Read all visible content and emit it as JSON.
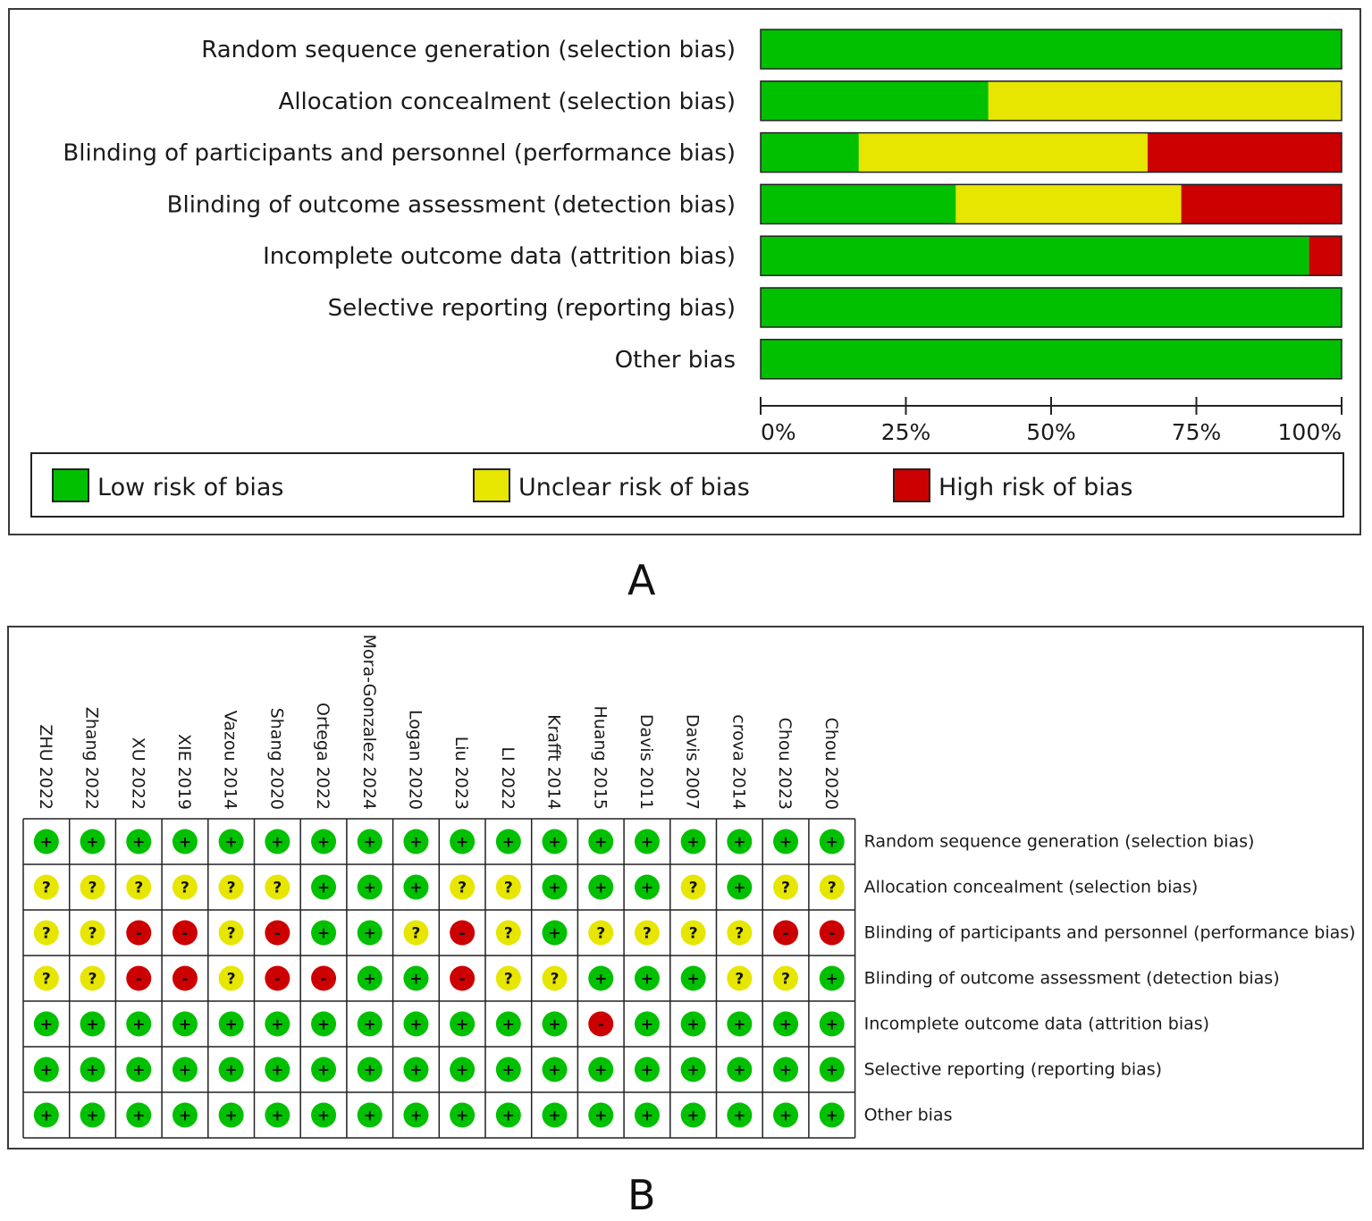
{
  "domains": [
    "Random sequence generation (selection bias)",
    "Allocation concealment (selection bias)",
    "Blinding of participants and personnel (performance bias)",
    "Blinding of outcome assessment (detection bias)",
    "Incomplete outcome data (attrition bias)",
    "Selective reporting (reporting bias)",
    "Other bias"
  ],
  "colors": {
    "low": "#00c000",
    "unclear": "#e6e600",
    "high": "#cc0000"
  },
  "panel_labels": {
    "a": "A",
    "b": "B"
  },
  "chart_data": [
    {
      "type": "bar",
      "orientation": "horizontal-stacked",
      "categories": [
        "Random sequence generation (selection bias)",
        "Allocation concealment (selection bias)",
        "Blinding of participants and personnel (performance bias)",
        "Blinding of outcome assessment (detection bias)",
        "Incomplete outcome data (attrition bias)",
        "Selective reporting (reporting bias)",
        "Other bias"
      ],
      "series": [
        {
          "name": "Low risk of bias",
          "color": "#00c000",
          "values": [
            100,
            39.2,
            16.9,
            33.6,
            94.4,
            100,
            100
          ]
        },
        {
          "name": "Unclear risk of bias",
          "color": "#e6e600",
          "values": [
            0,
            60.8,
            49.7,
            38.8,
            0,
            0,
            0
          ]
        },
        {
          "name": "High risk of bias",
          "color": "#cc0000",
          "values": [
            0,
            0,
            33.4,
            27.6,
            5.6,
            0,
            0
          ]
        }
      ],
      "xticks": [
        "0%",
        "25%",
        "50%",
        "75%",
        "100%"
      ],
      "xlim": [
        0,
        100
      ],
      "legend": [
        "Low risk of bias",
        "Unclear risk of bias",
        "High risk of bias"
      ],
      "legend_position": "bottom"
    },
    {
      "type": "table",
      "studies": [
        "ZHU 2022",
        "Zhang 2022",
        "XU 2022",
        "XIE 2019",
        "Vazou 2014",
        "Shang 2020",
        "Ortega 2022",
        "Mora-Gonzalez 2024",
        "Logan 2020",
        "Liu 2023",
        "LI 2022",
        "Krafft 2014",
        "Huang 2015",
        "Davis 2011",
        "Davis 2007",
        "crova 2014",
        "Chou 2023",
        "Chou 2020"
      ],
      "domains": [
        "Random sequence generation (selection bias)",
        "Allocation concealment (selection bias)",
        "Blinding of participants and personnel (performance bias)",
        "Blinding of outcome assessment (detection bias)",
        "Incomplete outcome data (attrition bias)",
        "Selective reporting (reporting bias)",
        "Other bias"
      ],
      "symbols": {
        "low": "+",
        "unclear": "?",
        "high": "-"
      },
      "judgements": [
        [
          "low",
          "low",
          "low",
          "low",
          "low",
          "low",
          "low",
          "low",
          "low",
          "low",
          "low",
          "low",
          "low",
          "low",
          "low",
          "low",
          "low",
          "low"
        ],
        [
          "unclear",
          "unclear",
          "unclear",
          "unclear",
          "unclear",
          "unclear",
          "low",
          "low",
          "low",
          "unclear",
          "unclear",
          "low",
          "low",
          "low",
          "unclear",
          "low",
          "unclear",
          "unclear"
        ],
        [
          "unclear",
          "unclear",
          "high",
          "high",
          "unclear",
          "high",
          "low",
          "low",
          "unclear",
          "high",
          "unclear",
          "low",
          "unclear",
          "unclear",
          "unclear",
          "unclear",
          "high",
          "high"
        ],
        [
          "unclear",
          "unclear",
          "high",
          "high",
          "unclear",
          "high",
          "high",
          "low",
          "low",
          "high",
          "unclear",
          "unclear",
          "low",
          "low",
          "low",
          "unclear",
          "unclear",
          "low"
        ],
        [
          "low",
          "low",
          "low",
          "low",
          "low",
          "low",
          "low",
          "low",
          "low",
          "low",
          "low",
          "low",
          "high",
          "low",
          "low",
          "low",
          "low",
          "low"
        ],
        [
          "low",
          "low",
          "low",
          "low",
          "low",
          "low",
          "low",
          "low",
          "low",
          "low",
          "low",
          "low",
          "low",
          "low",
          "low",
          "low",
          "low",
          "low"
        ],
        [
          "low",
          "low",
          "low",
          "low",
          "low",
          "low",
          "low",
          "low",
          "low",
          "low",
          "low",
          "low",
          "low",
          "low",
          "low",
          "low",
          "low",
          "low"
        ]
      ]
    }
  ]
}
